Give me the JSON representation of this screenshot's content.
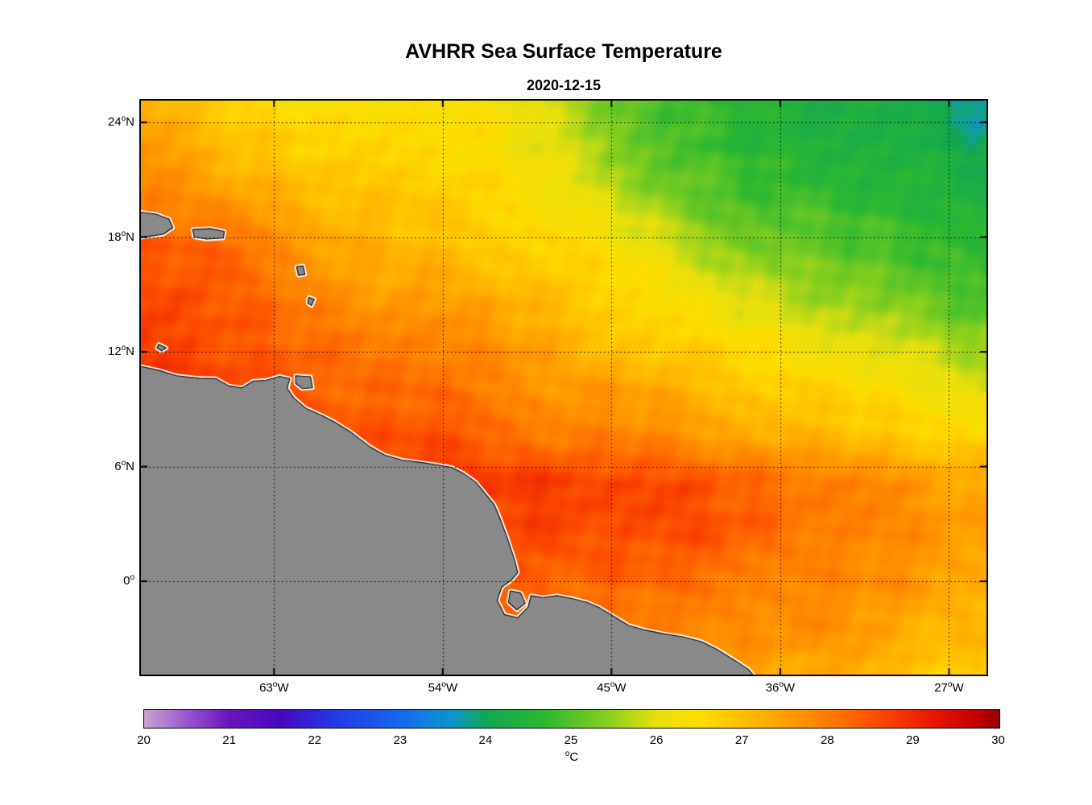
{
  "chart_data": {
    "type": "heatmap",
    "title": "AVHRR Sea Surface Temperature",
    "subtitle": "2020-12-15",
    "xlabel": "",
    "ylabel": "",
    "lon_range": [
      -70.1,
      -25.0
    ],
    "lat_range": [
      -4.88,
      25.14
    ],
    "lon_ticks": [
      {
        "label": "63°W",
        "lon": -63
      },
      {
        "label": "54°W",
        "lon": -54
      },
      {
        "label": "45°W",
        "lon": -45
      },
      {
        "label": "36°W",
        "lon": -36
      },
      {
        "label": "27°W",
        "lon": -27
      }
    ],
    "lat_ticks": [
      {
        "label": "24°N",
        "lat": 24
      },
      {
        "label": "18°N",
        "lat": 18
      },
      {
        "label": "12°N",
        "lat": 12
      },
      {
        "label": "6°N",
        "lat": 6
      },
      {
        "label": "0°",
        "lat": 0
      }
    ],
    "gridlines": {
      "lats": [
        24,
        18,
        12,
        6,
        0
      ],
      "lons": [
        -63,
        -54,
        -45,
        -36,
        -27
      ],
      "style": "dotted"
    },
    "colorbar": {
      "label": "°C",
      "min": 20,
      "max": 30,
      "ticks": [
        "20",
        "21",
        "22",
        "23",
        "24",
        "25",
        "26",
        "27",
        "28",
        "29",
        "30"
      ]
    },
    "colormap_stops": [
      [
        20.0,
        "#c7a3cf"
      ],
      [
        20.5,
        "#9a55cf"
      ],
      [
        21.0,
        "#6a14bb"
      ],
      [
        21.6,
        "#4508c0"
      ],
      [
        22.2,
        "#2638e6"
      ],
      [
        23.0,
        "#1668ee"
      ],
      [
        23.6,
        "#0d95cc"
      ],
      [
        24.0,
        "#12a852"
      ],
      [
        24.7,
        "#2eb830"
      ],
      [
        25.4,
        "#86cf1e"
      ],
      [
        26.0,
        "#e8e00e"
      ],
      [
        26.5,
        "#ffdd00"
      ],
      [
        27.2,
        "#ffb300"
      ],
      [
        28.0,
        "#ff7d00"
      ],
      [
        28.6,
        "#fc4a00"
      ],
      [
        29.2,
        "#ea1800"
      ],
      [
        29.7,
        "#c80000"
      ],
      [
        30.0,
        "#960000"
      ]
    ],
    "land_color": "#898989",
    "coast_halo_color": "#ffffff",
    "coast_line_color": "#000000",
    "grid": {
      "lons": [
        -70,
        -67.5,
        -65,
        -62.5,
        -60,
        -57.5,
        -55,
        -52.5,
        -50,
        -47.5,
        -45,
        -42.5,
        -40,
        -37.5,
        -35,
        -32.5,
        -30,
        -27.5,
        -25
      ],
      "lats": [
        25.2,
        22.5,
        20,
        17.5,
        15,
        12.5,
        10,
        7.5,
        5,
        2.5,
        0,
        -2.5,
        -5
      ],
      "sst": [
        [
          27.2,
          27.0,
          26.7,
          26.5,
          26.3,
          26.4,
          26.5,
          26.4,
          26.1,
          25.7,
          25.3,
          24.9,
          24.7,
          24.5,
          24.4,
          24.3,
          24.2,
          23.9,
          23.6
        ],
        [
          27.5,
          27.3,
          27.0,
          26.8,
          26.6,
          26.6,
          26.6,
          26.5,
          26.2,
          25.9,
          25.5,
          25.1,
          24.8,
          24.6,
          24.5,
          24.5,
          24.4,
          24.2,
          24.0
        ],
        [
          27.9,
          27.7,
          27.4,
          27.2,
          27.0,
          26.9,
          26.8,
          26.7,
          26.5,
          26.2,
          25.8,
          25.4,
          25.1,
          24.9,
          24.8,
          24.7,
          24.6,
          24.5,
          24.4
        ],
        [
          28.4,
          28.3,
          28.1,
          27.8,
          27.4,
          27.2,
          27.0,
          26.9,
          26.8,
          26.6,
          26.3,
          26.0,
          25.6,
          25.3,
          25.1,
          25.0,
          24.9,
          24.8,
          24.5
        ],
        [
          28.6,
          28.6,
          28.4,
          28.1,
          27.7,
          27.5,
          27.6,
          27.3,
          27.1,
          26.9,
          26.7,
          26.4,
          26.1,
          25.8,
          25.6,
          25.4,
          25.2,
          25.0,
          24.8
        ],
        [
          28.7,
          28.6,
          28.5,
          28.3,
          28.1,
          28.0,
          28.0,
          27.8,
          27.5,
          27.2,
          27.0,
          26.8,
          26.6,
          26.4,
          26.2,
          26.0,
          25.8,
          25.6,
          25.4
        ],
        [
          28.8,
          28.8,
          28.6,
          28.4,
          28.3,
          28.2,
          28.2,
          28.0,
          27.8,
          27.6,
          27.5,
          27.3,
          27.1,
          26.9,
          26.7,
          26.6,
          26.4,
          26.2,
          26.0
        ],
        [
          28.8,
          28.8,
          28.7,
          28.6,
          28.5,
          28.5,
          28.5,
          28.4,
          28.2,
          28.0,
          27.9,
          27.8,
          27.6,
          27.4,
          27.2,
          27.0,
          26.9,
          26.7,
          26.6
        ],
        [
          28.8,
          28.8,
          28.8,
          28.8,
          28.8,
          28.8,
          28.8,
          28.8,
          28.8,
          28.8,
          28.7,
          28.6,
          28.5,
          28.3,
          28.1,
          27.9,
          27.7,
          27.5,
          27.3
        ],
        [
          28.8,
          28.8,
          28.8,
          28.8,
          28.8,
          28.7,
          28.7,
          28.7,
          28.6,
          28.6,
          28.6,
          28.6,
          28.5,
          28.3,
          28.1,
          27.9,
          27.8,
          27.6,
          27.5
        ],
        [
          28.6,
          28.6,
          28.6,
          28.6,
          28.5,
          28.5,
          28.4,
          28.4,
          28.4,
          28.3,
          28.3,
          28.2,
          28.1,
          28.0,
          27.9,
          27.8,
          27.7,
          27.5,
          27.4
        ],
        [
          28.4,
          28.4,
          28.4,
          28.3,
          28.3,
          28.2,
          28.2,
          28.1,
          28.1,
          28.0,
          28.0,
          27.9,
          27.9,
          27.8,
          27.7,
          27.6,
          27.4,
          27.2,
          27.1
        ],
        [
          28.2,
          28.2,
          28.2,
          28.1,
          28.1,
          28.0,
          28.0,
          27.9,
          27.9,
          27.8,
          27.8,
          27.7,
          27.6,
          27.4,
          27.3,
          27.2,
          27.0,
          26.8,
          26.8
        ]
      ]
    },
    "land_polygons": [
      {
        "name": "south-america-mainland",
        "points": [
          [
            -70.4,
            11.3
          ],
          [
            -69.2,
            11.05
          ],
          [
            -68.2,
            10.75
          ],
          [
            -67.0,
            10.62
          ],
          [
            -66.1,
            10.6
          ],
          [
            -65.4,
            10.22
          ],
          [
            -64.7,
            10.12
          ],
          [
            -64.1,
            10.48
          ],
          [
            -63.4,
            10.52
          ],
          [
            -62.7,
            10.72
          ],
          [
            -62.15,
            10.6
          ],
          [
            -62.3,
            10.1
          ],
          [
            -61.95,
            9.6
          ],
          [
            -61.3,
            9.05
          ],
          [
            -60.5,
            8.7
          ],
          [
            -59.8,
            8.35
          ],
          [
            -58.9,
            7.8
          ],
          [
            -57.9,
            7.05
          ],
          [
            -57.1,
            6.6
          ],
          [
            -56.2,
            6.35
          ],
          [
            -55.2,
            6.22
          ],
          [
            -54.2,
            6.08
          ],
          [
            -53.5,
            5.95
          ],
          [
            -52.9,
            5.65
          ],
          [
            -52.25,
            5.2
          ],
          [
            -51.7,
            4.55
          ],
          [
            -51.25,
            4.0
          ],
          [
            -50.95,
            3.3
          ],
          [
            -50.55,
            2.25
          ],
          [
            -50.15,
            1.05
          ],
          [
            -50.0,
            0.45
          ],
          [
            -50.35,
            0.05
          ],
          [
            -50.85,
            -0.3
          ],
          [
            -51.1,
            -1.0
          ],
          [
            -50.7,
            -1.75
          ],
          [
            -50.0,
            -1.9
          ],
          [
            -49.45,
            -1.35
          ],
          [
            -49.3,
            -0.75
          ],
          [
            -48.65,
            -0.85
          ],
          [
            -47.9,
            -0.75
          ],
          [
            -47.1,
            -0.9
          ],
          [
            -46.3,
            -1.1
          ],
          [
            -45.6,
            -1.4
          ],
          [
            -44.85,
            -1.85
          ],
          [
            -44.1,
            -2.3
          ],
          [
            -43.2,
            -2.55
          ],
          [
            -42.2,
            -2.75
          ],
          [
            -41.2,
            -2.9
          ],
          [
            -40.2,
            -3.15
          ],
          [
            -39.3,
            -3.6
          ],
          [
            -38.4,
            -4.15
          ],
          [
            -37.7,
            -4.6
          ],
          [
            -37.1,
            -5.3
          ],
          [
            -37.0,
            -5.8
          ],
          [
            -70.4,
            -5.8
          ]
        ]
      },
      {
        "name": "marajo-island",
        "points": [
          [
            -50.4,
            -0.5
          ],
          [
            -49.85,
            -0.6
          ],
          [
            -49.6,
            -1.15
          ],
          [
            -50.05,
            -1.5
          ],
          [
            -50.5,
            -1.1
          ]
        ]
      },
      {
        "name": "hispaniola",
        "points": [
          [
            -70.4,
            19.35
          ],
          [
            -69.3,
            19.2
          ],
          [
            -68.6,
            18.95
          ],
          [
            -68.4,
            18.5
          ],
          [
            -68.9,
            18.15
          ],
          [
            -69.6,
            18.05
          ],
          [
            -70.4,
            17.95
          ]
        ]
      },
      {
        "name": "puerto-rico",
        "points": [
          [
            -67.35,
            18.4
          ],
          [
            -66.4,
            18.45
          ],
          [
            -65.65,
            18.3
          ],
          [
            -65.7,
            17.95
          ],
          [
            -66.6,
            17.9
          ],
          [
            -67.25,
            18.0
          ]
        ]
      },
      {
        "name": "trinidad",
        "points": [
          [
            -61.85,
            10.75
          ],
          [
            -61.05,
            10.7
          ],
          [
            -60.95,
            10.12
          ],
          [
            -61.5,
            10.08
          ],
          [
            -61.85,
            10.35
          ]
        ]
      },
      {
        "name": "guadeloupe",
        "points": [
          [
            -61.8,
            16.45
          ],
          [
            -61.45,
            16.5
          ],
          [
            -61.35,
            16.05
          ],
          [
            -61.7,
            16.0
          ]
        ]
      },
      {
        "name": "martinique",
        "points": [
          [
            -61.15,
            14.85
          ],
          [
            -60.85,
            14.75
          ],
          [
            -61.0,
            14.42
          ],
          [
            -61.2,
            14.55
          ]
        ]
      },
      {
        "name": "curacao",
        "points": [
          [
            -69.15,
            12.4
          ],
          [
            -68.75,
            12.2
          ],
          [
            -69.0,
            12.05
          ],
          [
            -69.25,
            12.2
          ]
        ]
      }
    ]
  }
}
